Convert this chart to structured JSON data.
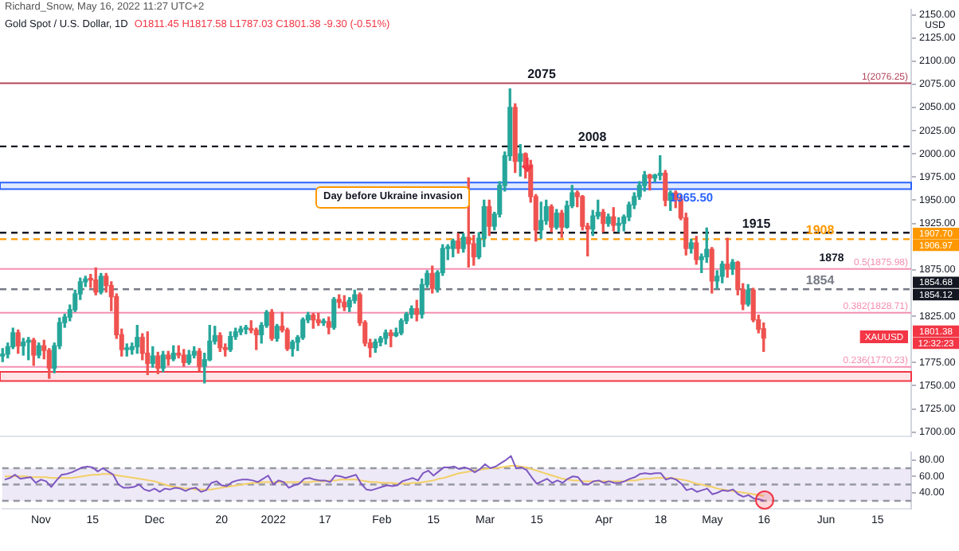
{
  "chart_data": [
    {
      "type": "candlestick",
      "title": "Gold Spot / U.S. Dollar, 1D",
      "subtitle": "O1811.45 H1817.58 L1787.03 C1801.38 -9.30 (-0.51%)",
      "ylabel": "USD",
      "categories": [
        null,
        null,
        null,
        null,
        null,
        null,
        null,
        null,
        null,
        null,
        null,
        null,
        null,
        null,
        null,
        null,
        null,
        null,
        null,
        null,
        null,
        null,
        null,
        null,
        null,
        null,
        null,
        null,
        null,
        null,
        null,
        null,
        null,
        null,
        null,
        null,
        null,
        null,
        null,
        null,
        null,
        null,
        null,
        null,
        null,
        null,
        null,
        null,
        null,
        null,
        null,
        null,
        null,
        null,
        null,
        null,
        null,
        null,
        null,
        null,
        null,
        null,
        null,
        null,
        null,
        null,
        null,
        null,
        null,
        null,
        null,
        null,
        null,
        null,
        null,
        null,
        null,
        null,
        null,
        null,
        null,
        null,
        null,
        null,
        null,
        null,
        null,
        null,
        null,
        null,
        null,
        null,
        null,
        null,
        null,
        null,
        null,
        null,
        null,
        null,
        null,
        null,
        null,
        null,
        null,
        null,
        null,
        null,
        null,
        null,
        null,
        null,
        null,
        null,
        null,
        null,
        null,
        null,
        null,
        null,
        null,
        null,
        null,
        null,
        null,
        null,
        null,
        null,
        null,
        null,
        null,
        null,
        null,
        null,
        null,
        null,
        null,
        null,
        null,
        null,
        null,
        null,
        null,
        null,
        null,
        null,
        null,
        null,
        null,
        null,
        null,
        null,
        null,
        null,
        null,
        null,
        null,
        null,
        null,
        null,
        null,
        null,
        null,
        null,
        null,
        null,
        null,
        null,
        null,
        null,
        null,
        null,
        null,
        null,
        null,
        null
      ],
      "ohlc": [
        [
          1782,
          1790,
          1776,
          1784
        ],
        [
          1784,
          1796,
          1780,
          1792
        ],
        [
          1792,
          1812,
          1790,
          1807
        ],
        [
          1807,
          1810,
          1785,
          1793
        ],
        [
          1793,
          1801,
          1783,
          1797
        ],
        [
          1797,
          1802,
          1778,
          1799
        ],
        [
          1799,
          1801,
          1772,
          1783
        ],
        [
          1783,
          1796,
          1780,
          1793
        ],
        [
          1793,
          1799,
          1779,
          1788
        ],
        [
          1788,
          1790,
          1758,
          1769
        ],
        [
          1769,
          1796,
          1764,
          1793
        ],
        [
          1793,
          1823,
          1790,
          1818
        ],
        [
          1818,
          1827,
          1813,
          1824
        ],
        [
          1824,
          1837,
          1820,
          1832
        ],
        [
          1832,
          1853,
          1830,
          1849
        ],
        [
          1849,
          1866,
          1843,
          1862
        ],
        [
          1862,
          1868,
          1857,
          1865
        ],
        [
          1865,
          1870,
          1856,
          1864
        ],
        [
          1864,
          1877,
          1848,
          1851
        ],
        [
          1851,
          1871,
          1849,
          1868
        ],
        [
          1868,
          1871,
          1851,
          1858
        ],
        [
          1858,
          1862,
          1831,
          1846
        ],
        [
          1846,
          1849,
          1801,
          1805
        ],
        [
          1805,
          1811,
          1782,
          1789
        ],
        [
          1789,
          1795,
          1782,
          1789
        ],
        [
          1789,
          1796,
          1784,
          1792
        ],
        [
          1792,
          1815,
          1785,
          1802
        ],
        [
          1802,
          1806,
          1778,
          1785
        ],
        [
          1785,
          1808,
          1762,
          1774
        ],
        [
          1774,
          1792,
          1770,
          1782
        ],
        [
          1782,
          1786,
          1763,
          1769
        ],
        [
          1769,
          1787,
          1765,
          1783
        ],
        [
          1783,
          1787,
          1772,
          1779
        ],
        [
          1779,
          1793,
          1777,
          1785
        ],
        [
          1785,
          1793,
          1780,
          1783
        ],
        [
          1783,
          1789,
          1771,
          1775
        ],
        [
          1775,
          1788,
          1773,
          1783
        ],
        [
          1783,
          1792,
          1780,
          1787
        ],
        [
          1787,
          1790,
          1766,
          1771
        ],
        [
          1771,
          1785,
          1753,
          1778
        ],
        [
          1778,
          1815,
          1777,
          1798
        ],
        [
          1798,
          1814,
          1795,
          1804
        ],
        [
          1804,
          1807,
          1787,
          1791
        ],
        [
          1791,
          1795,
          1782,
          1789
        ],
        [
          1789,
          1808,
          1787,
          1803
        ],
        [
          1803,
          1812,
          1800,
          1808
        ],
        [
          1808,
          1814,
          1805,
          1811
        ],
        [
          1811,
          1815,
          1806,
          1811
        ],
        [
          1811,
          1820,
          1807,
          1810
        ],
        [
          1810,
          1812,
          1789,
          1805
        ],
        [
          1805,
          1818,
          1796,
          1815
        ],
        [
          1815,
          1831,
          1813,
          1829
        ],
        [
          1829,
          1832,
          1799,
          1801
        ],
        [
          1801,
          1816,
          1798,
          1814
        ],
        [
          1814,
          1829,
          1808,
          1810
        ],
        [
          1810,
          1812,
          1788,
          1790
        ],
        [
          1790,
          1799,
          1782,
          1797
        ],
        [
          1797,
          1804,
          1788,
          1802
        ],
        [
          1802,
          1823,
          1800,
          1821
        ],
        [
          1821,
          1829,
          1818,
          1826
        ],
        [
          1826,
          1828,
          1812,
          1821
        ],
        [
          1821,
          1828,
          1815,
          1818
        ],
        [
          1818,
          1822,
          1815,
          1819
        ],
        [
          1819,
          1824,
          1806,
          1813
        ],
        [
          1813,
          1845,
          1811,
          1843
        ],
        [
          1843,
          1848,
          1834,
          1840
        ],
        [
          1840,
          1847,
          1831,
          1835
        ],
        [
          1835,
          1845,
          1830,
          1842
        ],
        [
          1842,
          1853,
          1839,
          1848
        ],
        [
          1848,
          1850,
          1815,
          1818
        ],
        [
          1818,
          1820,
          1793,
          1796
        ],
        [
          1796,
          1800,
          1781,
          1791
        ],
        [
          1791,
          1800,
          1786,
          1797
        ],
        [
          1797,
          1803,
          1793,
          1801
        ],
        [
          1801,
          1810,
          1795,
          1807
        ],
        [
          1807,
          1810,
          1792,
          1804
        ],
        [
          1804,
          1812,
          1803,
          1807
        ],
        [
          1807,
          1822,
          1805,
          1820
        ],
        [
          1820,
          1829,
          1817,
          1827
        ],
        [
          1827,
          1836,
          1823,
          1833
        ],
        [
          1833,
          1842,
          1820,
          1827
        ],
        [
          1827,
          1865,
          1823,
          1859
        ],
        [
          1859,
          1874,
          1856,
          1871
        ],
        [
          1871,
          1879,
          1850,
          1855
        ],
        [
          1855,
          1874,
          1851,
          1872
        ],
        [
          1872,
          1902,
          1869,
          1898
        ],
        [
          1898,
          1902,
          1886,
          1898
        ],
        [
          1898,
          1908,
          1889,
          1906
        ],
        [
          1906,
          1914,
          1893,
          1898
        ],
        [
          1898,
          1914,
          1894,
          1910
        ],
        [
          1910,
          1974,
          1878,
          1903
        ],
        [
          1903,
          1912,
          1880,
          1889
        ],
        [
          1889,
          1915,
          1887,
          1909
        ],
        [
          1909,
          1950,
          1900,
          1943
        ],
        [
          1943,
          1950,
          1912,
          1922
        ],
        [
          1922,
          1937,
          1918,
          1935
        ],
        [
          1935,
          1970,
          1932,
          1966
        ],
        [
          1966,
          2002,
          1960,
          1998
        ],
        [
          1998,
          2070,
          1993,
          2050
        ],
        [
          2050,
          2054,
          1980,
          1992
        ],
        [
          1992,
          2010,
          1976,
          2000
        ],
        [
          2000,
          2001,
          1974,
          1988
        ],
        [
          1988,
          1993,
          1948,
          1954
        ],
        [
          1954,
          1956,
          1906,
          1918
        ],
        [
          1918,
          1948,
          1909,
          1928
        ],
        [
          1928,
          1950,
          1924,
          1943
        ],
        [
          1943,
          1945,
          1916,
          1921
        ],
        [
          1921,
          1940,
          1919,
          1936
        ],
        [
          1936,
          1939,
          1910,
          1921
        ],
        [
          1921,
          1949,
          1920,
          1944
        ],
        [
          1944,
          1966,
          1942,
          1958
        ],
        [
          1958,
          1960,
          1943,
          1954
        ],
        [
          1954,
          1955,
          1918,
          1922
        ],
        [
          1922,
          1925,
          1890,
          1919
        ],
        [
          1919,
          1939,
          1912,
          1933
        ],
        [
          1933,
          1950,
          1930,
          1937
        ],
        [
          1937,
          1940,
          1916,
          1925
        ],
        [
          1925,
          1935,
          1922,
          1932
        ],
        [
          1932,
          1942,
          1917,
          1923
        ],
        [
          1923,
          1931,
          1916,
          1925
        ],
        [
          1925,
          1934,
          1917,
          1932
        ],
        [
          1932,
          1948,
          1928,
          1945
        ],
        [
          1945,
          1958,
          1941,
          1954
        ],
        [
          1954,
          1970,
          1951,
          1966
        ],
        [
          1966,
          1981,
          1960,
          1977
        ],
        [
          1977,
          1978,
          1961,
          1974
        ],
        [
          1974,
          1978,
          1970,
          1977
        ],
        [
          1977,
          1998,
          1972,
          1979
        ],
        [
          1979,
          1982,
          1944,
          1950
        ],
        [
          1950,
          1960,
          1939,
          1958
        ],
        [
          1958,
          1960,
          1942,
          1951
        ],
        [
          1951,
          1955,
          1929,
          1931
        ],
        [
          1931,
          1936,
          1891,
          1898
        ],
        [
          1898,
          1908,
          1893,
          1904
        ],
        [
          1904,
          1911,
          1881,
          1886
        ],
        [
          1886,
          1892,
          1872,
          1889
        ],
        [
          1889,
          1920,
          1883,
          1897
        ],
        [
          1897,
          1899,
          1850,
          1863
        ],
        [
          1863,
          1874,
          1855,
          1868
        ],
        [
          1868,
          1884,
          1861,
          1881
        ],
        [
          1881,
          1909,
          1867,
          1876
        ],
        [
          1876,
          1886,
          1870,
          1883
        ],
        [
          1883,
          1884,
          1848,
          1854
        ],
        [
          1854,
          1860,
          1832,
          1838
        ],
        [
          1838,
          1859,
          1836,
          1853
        ],
        [
          1853,
          1855,
          1819,
          1821
        ],
        [
          1821,
          1826,
          1807,
          1811
        ],
        [
          1811.45,
          1817.58,
          1787.03,
          1801.38
        ],
        null,
        null,
        null,
        null,
        null,
        null,
        null,
        null,
        null,
        null,
        null,
        null,
        null,
        null,
        null,
        null,
        null,
        null,
        null,
        null,
        null,
        null,
        null,
        null,
        null,
        null,
        null,
        null
      ],
      "colors": [
        "#26a69a",
        "#26a69a",
        "#26a69a",
        "#ef5350",
        "#26a69a",
        "#26a69a",
        "#ef5350",
        "#26a69a",
        "#ef5350",
        "#ef5350",
        "#26a69a",
        "#26a69a",
        "#26a69a",
        "#26a69a",
        "#26a69a",
        "#26a69a",
        "#26a69a",
        "#ef5350",
        "#ef5350",
        "#26a69a",
        "#ef5350",
        "#ef5350",
        "#ef5350",
        "#ef5350",
        "#26a69a",
        "#26a69a",
        "#26a69a",
        "#ef5350",
        "#ef5350",
        "#26a69a",
        "#ef5350",
        "#26a69a",
        "#ef5350",
        "#26a69a",
        "#ef5350",
        "#ef5350",
        "#26a69a",
        "#26a69a",
        "#ef5350",
        "#26a69a",
        "#26a69a",
        "#26a69a",
        "#ef5350",
        "#ef5350",
        "#26a69a",
        "#26a69a",
        "#26a69a",
        "#26a69a",
        "#ef5350",
        "#ef5350",
        "#26a69a",
        "#26a69a",
        "#ef5350",
        "#26a69a",
        "#ef5350",
        "#ef5350",
        "#26a69a",
        "#26a69a",
        "#26a69a",
        "#26a69a",
        "#ef5350",
        "#ef5350",
        "#26a69a",
        "#ef5350",
        "#26a69a",
        "#ef5350",
        "#ef5350",
        "#26a69a",
        "#26a69a",
        "#ef5350",
        "#ef5350",
        "#ef5350",
        "#26a69a",
        "#26a69a",
        "#26a69a",
        "#ef5350",
        "#26a69a",
        "#26a69a",
        "#26a69a",
        "#26a69a",
        "#ef5350",
        "#26a69a",
        "#26a69a",
        "#ef5350",
        "#26a69a",
        "#26a69a",
        "#26a69a",
        "#26a69a",
        "#ef5350",
        "#26a69a",
        "#ef5350",
        "#ef5350",
        "#26a69a",
        "#26a69a",
        "#ef5350",
        "#26a69a",
        "#26a69a",
        "#26a69a",
        "#26a69a",
        "#ef5350",
        "#26a69a",
        "#ef5350",
        "#ef5350",
        "#ef5350",
        "#26a69a",
        "#26a69a",
        "#ef5350",
        "#26a69a",
        "#ef5350",
        "#26a69a",
        "#26a69a",
        "#ef5350",
        "#ef5350",
        "#ef5350",
        "#26a69a",
        "#26a69a",
        "#ef5350",
        "#26a69a",
        "#ef5350",
        "#26a69a",
        "#26a69a",
        "#26a69a",
        "#26a69a",
        "#26a69a",
        "#26a69a",
        "#ef5350",
        "#26a69a",
        "#26a69a",
        "#ef5350",
        "#26a69a",
        "#ef5350",
        "#ef5350",
        "#ef5350",
        "#26a69a",
        "#ef5350",
        "#26a69a",
        "#26a69a",
        "#ef5350",
        "#26a69a",
        "#26a69a",
        "#ef5350",
        "#26a69a",
        "#ef5350",
        "#ef5350",
        "#26a69a",
        "#ef5350",
        "#ef5350",
        "#ef5350",
        null,
        null,
        null,
        null,
        null,
        null,
        null,
        null,
        null,
        null,
        null,
        null,
        null,
        null,
        null,
        null,
        null,
        null,
        null,
        null,
        null,
        null,
        null,
        null,
        null,
        null,
        null,
        null
      ],
      "ylim": [
        1695,
        2156
      ],
      "yticks": [
        {
          "value": 1700,
          "label": "1700.00"
        },
        {
          "value": 1725,
          "label": "1725.00"
        },
        {
          "value": 1750,
          "label": "1750.00"
        },
        {
          "value": 1775,
          "label": "1775.00"
        },
        {
          "value": 1825,
          "label": "1825.00"
        },
        {
          "value": 1875,
          "label": "1875.00"
        },
        {
          "value": 1925,
          "label": "1925.00"
        },
        {
          "value": 1950,
          "label": "1950.00"
        },
        {
          "value": 1975,
          "label": "1975.00"
        },
        {
          "value": 2000,
          "label": "2000.00"
        },
        {
          "value": 2025,
          "label": "2025.00"
        },
        {
          "value": 2050,
          "label": "2050.00"
        },
        {
          "value": 2075,
          "label": "2075.00"
        },
        {
          "value": 2100,
          "label": "2100.00"
        },
        {
          "value": 2125,
          "label": "2125.00"
        },
        {
          "value": 2150,
          "label": "2150.00"
        }
      ],
      "ref_lines": [
        {
          "axis": "y",
          "value": 2076.25,
          "label": "1(2076.25)",
          "color": "#b2475b"
        },
        {
          "axis": "y",
          "value": 2008,
          "label": "2008",
          "color": "#131722",
          "line_style": "dashed"
        },
        {
          "axis": "y",
          "value": 1915,
          "label": "1915",
          "color": "#131722",
          "line_style": "dashed"
        },
        {
          "axis": "y",
          "value": 1908,
          "label": "1908",
          "color": "#ff9800",
          "line_style": "dashed"
        },
        {
          "axis": "y",
          "value": 1875.98,
          "label": "0.5(1875.98)",
          "color": "#f48fb1"
        },
        {
          "axis": "y",
          "value": 1854,
          "label": "1854",
          "color": "#787b86",
          "line_style": "dashed"
        },
        {
          "axis": "y",
          "value": 1828.71,
          "label": "0.382(1828.71)",
          "color": "#f48fb1"
        },
        {
          "axis": "y",
          "value": 1770.23,
          "label": "0.236(1770.23)",
          "color": "#f48fb1"
        }
      ],
      "bands": [
        {
          "axis": "y",
          "from": 1962,
          "to": 1969,
          "label": "1965.50",
          "color": "#2962ff"
        },
        {
          "axis": "y",
          "from": 1755,
          "to": 1765,
          "color": "#f23645"
        }
      ],
      "annotations": [
        "Richard_Snow, May 16, 2022 11:27 UTC+2",
        "Day before Ukraine invasion",
        {
          "text": "2075",
          "y": 2075
        },
        {
          "text": "1878",
          "y": 1878
        },
        "1907.70",
        "1906.97",
        "1854.68",
        "1854.12",
        "XAUUSD",
        "1801.38",
        "12:32:23"
      ],
      "tick_labels": "y"
    },
    {
      "type": "line",
      "categories": [
        null,
        null,
        null,
        null,
        null,
        null,
        null,
        "Nov",
        null,
        null,
        null,
        null,
        null,
        null,
        null,
        null,
        null,
        "15",
        null,
        null,
        null,
        null,
        null,
        null,
        null,
        null,
        null,
        null,
        null,
        "Dec",
        null,
        null,
        null,
        null,
        null,
        null,
        null,
        null,
        null,
        null,
        null,
        null,
        "20",
        null,
        null,
        null,
        null,
        null,
        null,
        null,
        null,
        null,
        "2022",
        null,
        null,
        null,
        null,
        null,
        null,
        null,
        null,
        null,
        "17",
        null,
        null,
        null,
        null,
        null,
        null,
        null,
        null,
        null,
        null,
        "Feb",
        null,
        null,
        null,
        null,
        null,
        null,
        null,
        null,
        null,
        "15",
        null,
        null,
        null,
        null,
        null,
        null,
        null,
        null,
        null,
        "Mar",
        null,
        null,
        null,
        null,
        null,
        null,
        null,
        null,
        null,
        "15",
        null,
        null,
        null,
        null,
        null,
        null,
        null,
        null,
        null,
        null,
        null,
        null,
        "Apr",
        null,
        null,
        null,
        null,
        null,
        null,
        null,
        null,
        null,
        null,
        "18",
        null,
        null,
        null,
        null,
        null,
        null,
        null,
        null,
        null,
        "May",
        null,
        null,
        null,
        null,
        null,
        null,
        null,
        null,
        null,
        "16",
        null,
        null,
        null,
        null,
        null,
        null,
        null,
        null,
        null,
        null,
        null,
        "Jun",
        null,
        null,
        null,
        null,
        null,
        null,
        null,
        null,
        null,
        "15",
        null,
        null,
        null,
        null,
        null,
        null
      ],
      "series": [
        {
          "color": "#7e57c2",
          "values": [
            56,
            58,
            62,
            57,
            58,
            59,
            52,
            56,
            54,
            47,
            55,
            62,
            63,
            65,
            68,
            71,
            72,
            71,
            66,
            70,
            66,
            62,
            50,
            46,
            46,
            47,
            50,
            44,
            42,
            45,
            41,
            45,
            44,
            46,
            45,
            42,
            45,
            46,
            41,
            43,
            52,
            54,
            49,
            48,
            53,
            55,
            56,
            56,
            55,
            53,
            57,
            61,
            50,
            55,
            53,
            46,
            49,
            51,
            57,
            58,
            56,
            55,
            55,
            53,
            61,
            60,
            58,
            60,
            62,
            51,
            44,
            43,
            45,
            47,
            49,
            48,
            49,
            54,
            56,
            58,
            55,
            64,
            67,
            61,
            66,
            71,
            71,
            72,
            69,
            71,
            69,
            65,
            69,
            75,
            70,
            72,
            76,
            80,
            85,
            70,
            71,
            68,
            59,
            51,
            54,
            57,
            52,
            55,
            52,
            57,
            60,
            59,
            51,
            50,
            54,
            55,
            52,
            54,
            52,
            52,
            54,
            57,
            59,
            63,
            64,
            63,
            64,
            64,
            56,
            58,
            56,
            51,
            43,
            45,
            41,
            43,
            45,
            38,
            40,
            43,
            42,
            44,
            38,
            35,
            37,
            33,
            32,
            30,
            null,
            null,
            null,
            null,
            null,
            null,
            null,
            null,
            null,
            null,
            null,
            null,
            null,
            null,
            null,
            null,
            null,
            null,
            null,
            null,
            null,
            null,
            null,
            null,
            null,
            null,
            null,
            null
          ]
        },
        {
          "color": "#f2cf66",
          "values": [
            60,
            60,
            60,
            60,
            60,
            59,
            59,
            59,
            59,
            58,
            58,
            58,
            58,
            58,
            59,
            60,
            61,
            62,
            62,
            63,
            63,
            62,
            61,
            60,
            59,
            58,
            57,
            56,
            55,
            54,
            52,
            50,
            48,
            47,
            46,
            45,
            45,
            44,
            44,
            44,
            44,
            45,
            46,
            47,
            48,
            49,
            50,
            51,
            52,
            52,
            53,
            53,
            53,
            53,
            53,
            53,
            53,
            53,
            53,
            53,
            54,
            54,
            54,
            55,
            55,
            56,
            56,
            56,
            56,
            55,
            54,
            53,
            53,
            52,
            52,
            52,
            51,
            51,
            51,
            52,
            52,
            53,
            54,
            55,
            57,
            58,
            60,
            62,
            64,
            65,
            66,
            67,
            68,
            69,
            70,
            70,
            71,
            72,
            73,
            73,
            72,
            71,
            69,
            67,
            65,
            63,
            61,
            59,
            57,
            56,
            55,
            55,
            54,
            54,
            54,
            54,
            54,
            54,
            54,
            54,
            54,
            55,
            55,
            56,
            57,
            57,
            58,
            58,
            58,
            58,
            57,
            56,
            55,
            53,
            51,
            50,
            48,
            47,
            45,
            44,
            43,
            42,
            41,
            40,
            39,
            38,
            37,
            36,
            null,
            null,
            null,
            null,
            null,
            null,
            null,
            null,
            null,
            null,
            null,
            null,
            null,
            null,
            null,
            null,
            null,
            null,
            null,
            null,
            null,
            null,
            null,
            null,
            null,
            null,
            null,
            null
          ]
        }
      ],
      "ylim": [
        20,
        90
      ],
      "yticks": [
        {
          "value": 40,
          "label": "40.00"
        },
        {
          "value": 60,
          "label": "60.00"
        },
        {
          "value": 80,
          "label": "80.00"
        }
      ],
      "ref_lines": [
        {
          "axis": "y",
          "value": 70,
          "color": "#9598a1",
          "line_style": "dashed"
        },
        {
          "axis": "y",
          "value": 50,
          "color": "#9598a1",
          "line_style": "dashed"
        },
        {
          "axis": "y",
          "value": 30,
          "color": "#9598a1",
          "line_style": "dashed"
        }
      ],
      "bands": [
        {
          "axis": "y",
          "from": 30,
          "to": 70,
          "color": "#7e57c2"
        }
      ]
    }
  ]
}
